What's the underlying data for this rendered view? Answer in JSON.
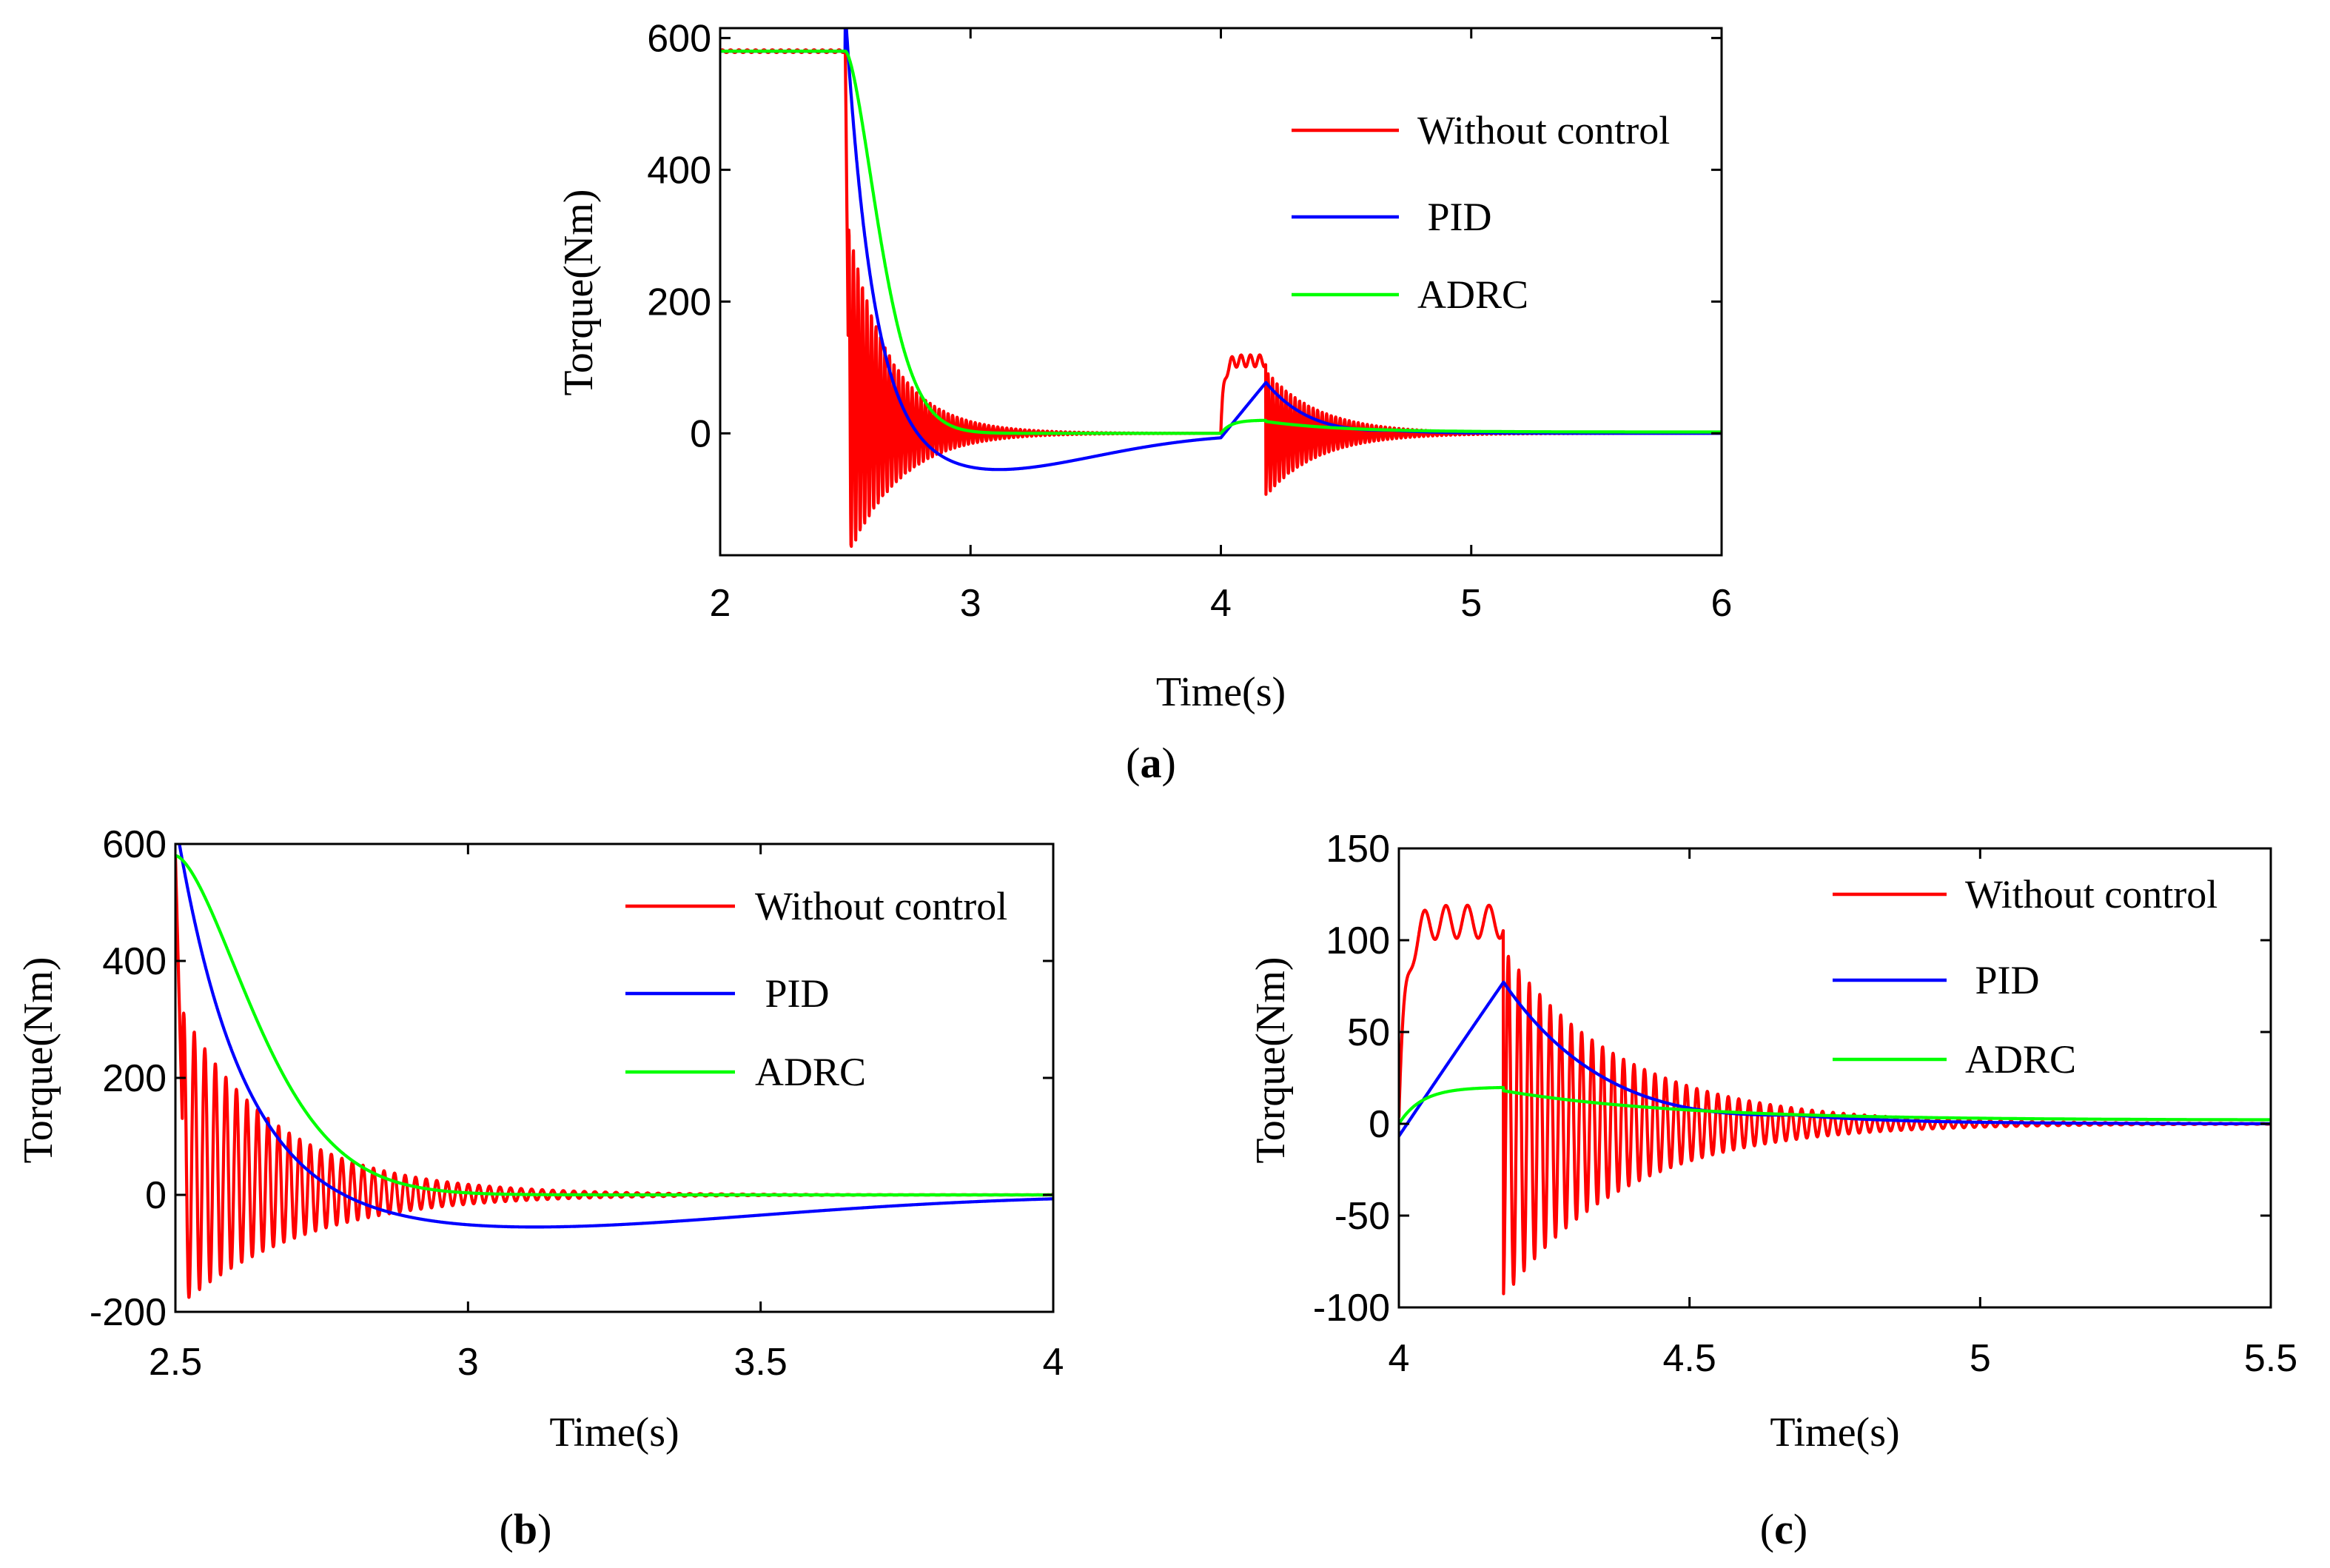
{
  "figure": {
    "colors": {
      "without_control": "#ff0000",
      "pid": "#0000ff",
      "adrc": "#00ff00",
      "axis": "#000000"
    }
  },
  "chart_data": [
    {
      "id": "a",
      "type": "line",
      "panel_label": "a",
      "xlabel": "Time(s)",
      "ylabel": "Torque(Nm)",
      "xlim": [
        2,
        6
      ],
      "ylim": [
        -185,
        615
      ],
      "xticks": [
        "2",
        "3",
        "4",
        "5",
        "6"
      ],
      "xtick_values": [
        2,
        3,
        4,
        5,
        6
      ],
      "yticks": [
        "0",
        "200",
        "400",
        "600"
      ],
      "ytick_values": [
        0,
        200,
        400,
        600
      ],
      "grid": false,
      "legend_position": "top-right",
      "series": [
        {
          "name": "Without control",
          "color": "#ff0000",
          "label": "Without control"
        },
        {
          "name": "PID",
          "color": "#0000ff",
          "label": " PID"
        },
        {
          "name": "ADRC",
          "color": "#00ff00",
          "label": "ADRC"
        }
      ],
      "model": {
        "step1_time": 2.5,
        "step2_time": 4.0,
        "initial_torque": 580,
        "without_control": {
          "osc_freq_hz": 55.5,
          "amp1": 250,
          "decay1": 5.5,
          "amp2": 95,
          "decay2": 4.8,
          "plateau_peak": 118
        },
        "pid": {
          "undershoot": -62,
          "undershoot_time": 3.0,
          "peak2": 80,
          "peak2_time": 4.18
        },
        "adrc": {
          "time_constant": 0.09,
          "peak2": 20
        }
      }
    },
    {
      "id": "b",
      "type": "line",
      "panel_label": "b",
      "xlabel": "Time(s)",
      "ylabel": "Torque(Nm)",
      "xlim": [
        2.5,
        4
      ],
      "ylim": [
        -200,
        600
      ],
      "xticks": [
        "2.5",
        "3",
        "3.5",
        "4"
      ],
      "xtick_values": [
        2.5,
        3,
        3.5,
        4
      ],
      "yticks": [
        "-200",
        "0",
        "200",
        "400",
        "600"
      ],
      "ytick_values": [
        -200,
        0,
        200,
        400,
        600
      ],
      "grid": false,
      "legend_position": "top-right",
      "series": [
        {
          "name": "Without control",
          "color": "#ff0000",
          "label": "Without control"
        },
        {
          "name": "PID",
          "color": "#0000ff",
          "label": " PID"
        },
        {
          "name": "ADRC",
          "color": "#00ff00",
          "label": "ADRC"
        }
      ]
    },
    {
      "id": "c",
      "type": "line",
      "panel_label": "c",
      "xlabel": "Time(s)",
      "ylabel": "Torque(Nm)",
      "xlim": [
        4,
        5.5
      ],
      "ylim": [
        -100,
        150
      ],
      "xticks": [
        "4",
        "4.5",
        "5",
        "5.5"
      ],
      "xtick_values": [
        4,
        4.5,
        5,
        5.5
      ],
      "yticks": [
        "-100",
        "-50",
        "0",
        "50",
        "100",
        "150"
      ],
      "ytick_values": [
        -100,
        -50,
        0,
        50,
        100,
        150
      ],
      "grid": false,
      "legend_position": "top-right",
      "series": [
        {
          "name": "Without control",
          "color": "#ff0000",
          "label": "Without control"
        },
        {
          "name": "PID",
          "color": "#0000ff",
          "label": " PID"
        },
        {
          "name": "ADRC",
          "color": "#00ff00",
          "label": "ADRC"
        }
      ]
    }
  ]
}
